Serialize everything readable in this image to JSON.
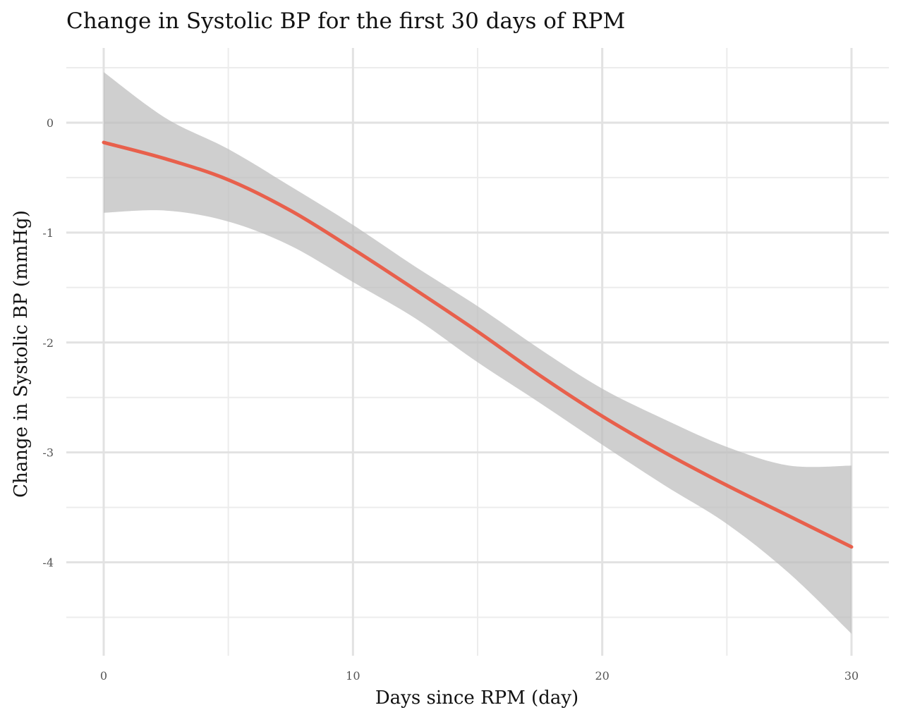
{
  "chart_data": {
    "type": "line",
    "title": "Change in Systolic BP for the first 30 days of RPM",
    "xlabel": "Days since RPM (day)",
    "ylabel": "Change in Systolic BP (mmHg)",
    "xlim": [
      -1.5,
      31.5
    ],
    "ylim": [
      -4.85,
      0.68
    ],
    "x_ticks": [
      0,
      10,
      20,
      30
    ],
    "x_tick_labels": [
      "0",
      "10",
      "20",
      "30"
    ],
    "y_ticks": [
      0,
      -1,
      -2,
      -3,
      -4
    ],
    "y_tick_labels": [
      "0",
      "-1",
      "-2",
      "-3",
      "-4"
    ],
    "x_minor_gridlines": [
      5,
      15,
      25
    ],
    "y_minor_gridlines": [
      0.5,
      -0.5,
      -1.5,
      -2.5,
      -3.5,
      -4.5
    ],
    "grid": true,
    "legend": "none",
    "series": [
      {
        "style": "smooth-line",
        "color": "#E8604C",
        "x": [
          0,
          2.5,
          5,
          7.5,
          10,
          12.5,
          15,
          17.5,
          20,
          22.5,
          25,
          27.5,
          30
        ],
        "y": [
          -0.18,
          -0.33,
          -0.52,
          -0.8,
          -1.15,
          -1.52,
          -1.9,
          -2.3,
          -2.67,
          -3.0,
          -3.3,
          -3.58,
          -3.86
        ]
      }
    ],
    "confidence_band": {
      "color": "#BDBDBD",
      "x": [
        0,
        2.5,
        5,
        7.5,
        10,
        12.5,
        15,
        17.5,
        20,
        22.5,
        25,
        27.5,
        30
      ],
      "upper": [
        0.46,
        0.04,
        -0.24,
        -0.58,
        -0.93,
        -1.31,
        -1.67,
        -2.06,
        -2.42,
        -2.7,
        -2.95,
        -3.12,
        -3.12
      ],
      "lower": [
        -0.82,
        -0.8,
        -0.9,
        -1.12,
        -1.45,
        -1.78,
        -2.18,
        -2.55,
        -2.93,
        -3.3,
        -3.65,
        -4.1,
        -4.65
      ]
    }
  }
}
